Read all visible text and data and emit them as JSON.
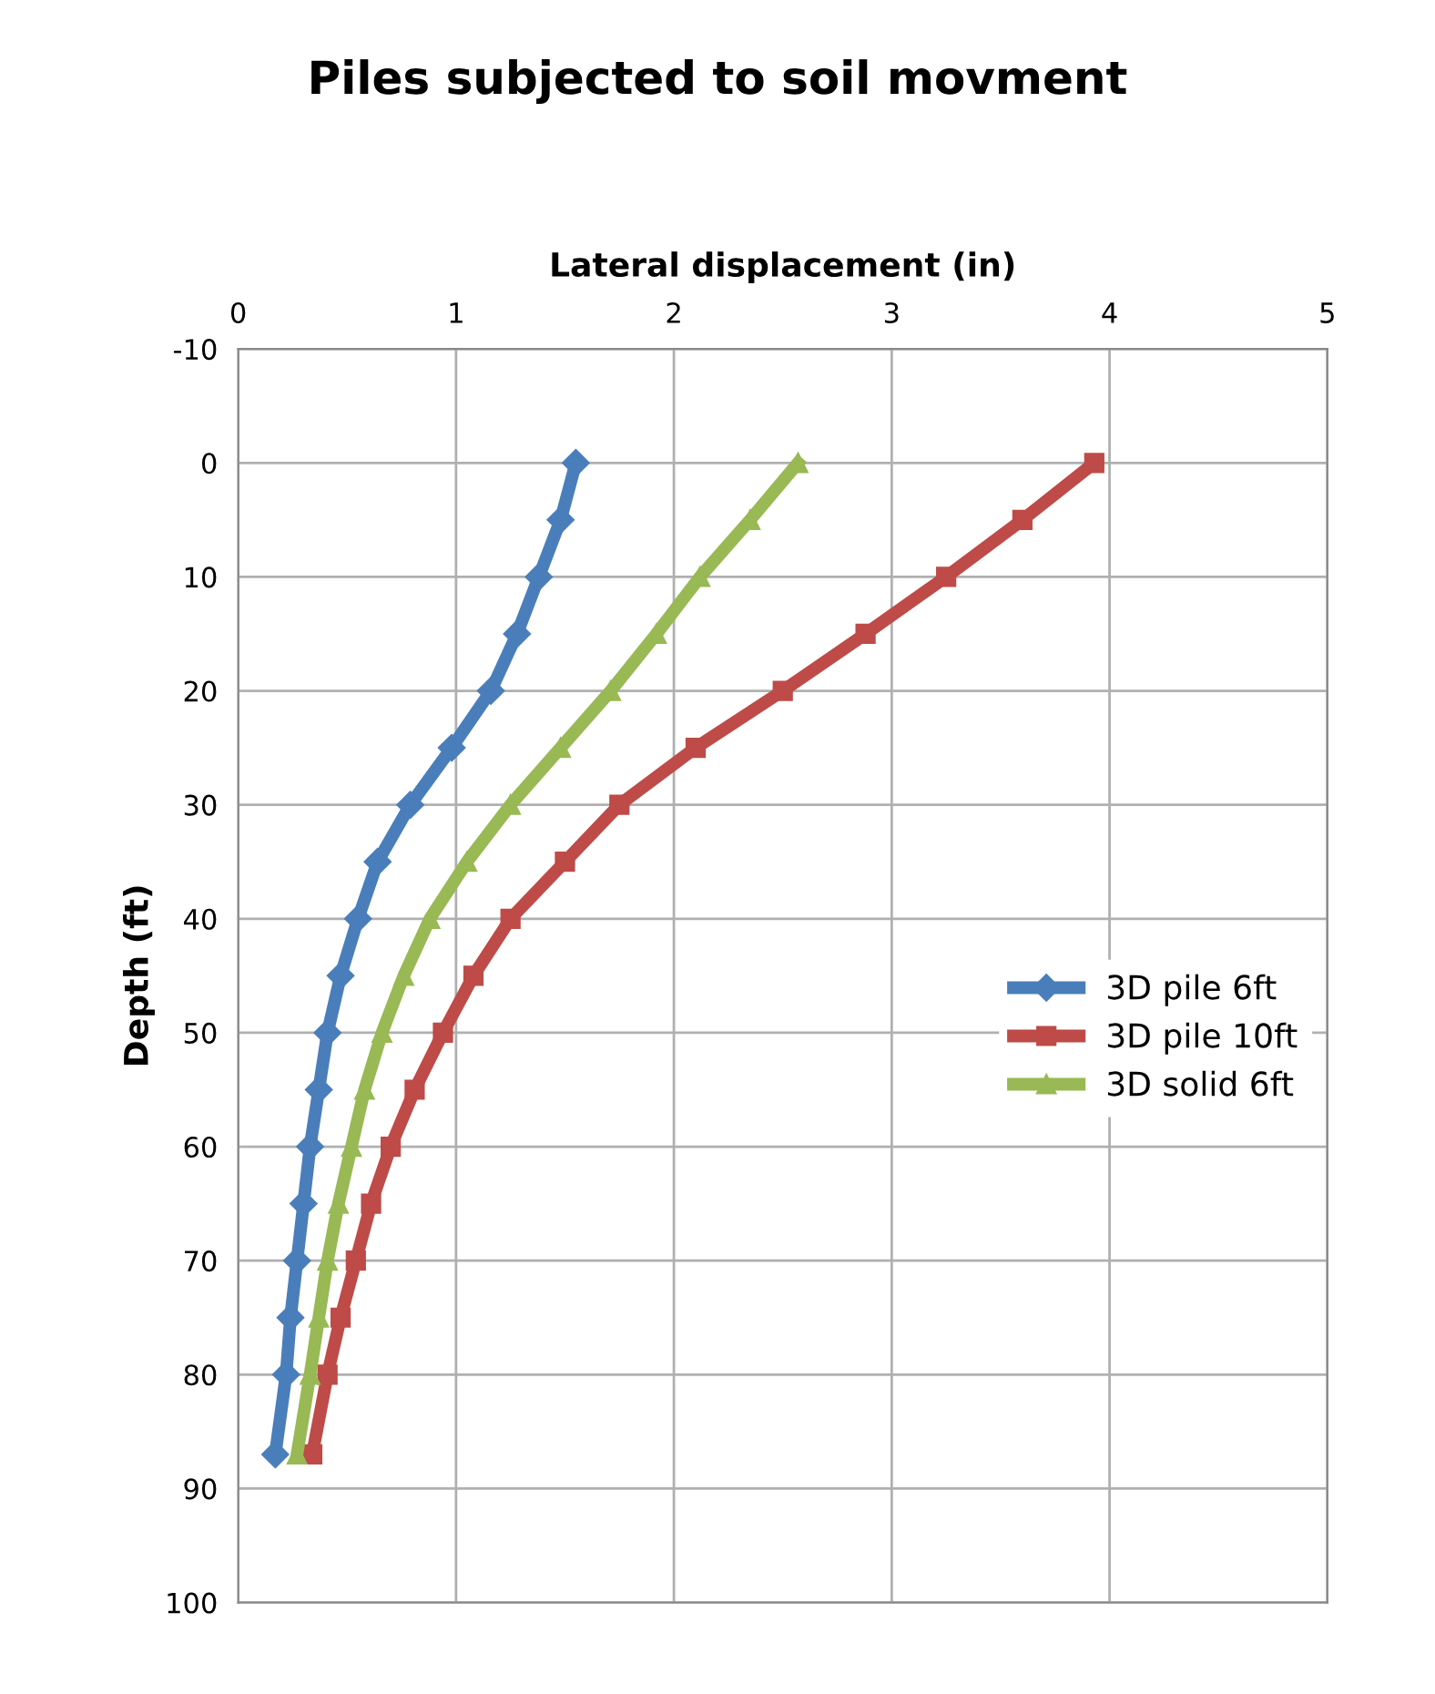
{
  "chart_data": {
    "type": "line",
    "title": "Piles subjected to soil movment",
    "xlabel": "Lateral displacement (in)",
    "ylabel": "Depth (ft)",
    "xlim": [
      0,
      5
    ],
    "xticks": [
      0,
      1,
      2,
      3,
      4,
      5
    ],
    "ylim": [
      100,
      -10
    ],
    "yticks": [
      -10,
      0,
      10,
      20,
      30,
      40,
      50,
      60,
      70,
      80,
      90,
      100
    ],
    "grid": true,
    "legend": "right",
    "series": [
      {
        "name": "3D pile 6ft",
        "color": "#4a7ebb",
        "marker": "diamond",
        "x": [
          1.55,
          1.48,
          1.38,
          1.28,
          1.16,
          0.98,
          0.79,
          0.64,
          0.55,
          0.47,
          0.41,
          0.37,
          0.33,
          0.3,
          0.27,
          0.24,
          0.22,
          0.17
        ],
        "values": [
          0,
          5,
          10,
          15,
          20,
          25,
          30,
          35,
          40,
          45,
          50,
          55,
          60,
          65,
          70,
          75,
          80,
          87
        ]
      },
      {
        "name": "3D pile 10ft",
        "color": "#be4b48",
        "marker": "square",
        "x": [
          3.93,
          3.6,
          3.25,
          2.88,
          2.5,
          2.1,
          1.75,
          1.5,
          1.25,
          1.08,
          0.94,
          0.81,
          0.7,
          0.61,
          0.54,
          0.47,
          0.41,
          0.34
        ],
        "values": [
          0,
          5,
          10,
          15,
          20,
          25,
          30,
          35,
          40,
          45,
          50,
          55,
          60,
          65,
          70,
          75,
          80,
          87
        ]
      },
      {
        "name": "3D solid 6ft",
        "color": "#98b954",
        "marker": "triangle",
        "x": [
          2.57,
          2.35,
          2.12,
          1.92,
          1.71,
          1.48,
          1.25,
          1.05,
          0.88,
          0.76,
          0.66,
          0.58,
          0.52,
          0.46,
          0.41,
          0.37,
          0.33,
          0.27
        ],
        "values": [
          0,
          5,
          10,
          15,
          20,
          25,
          30,
          35,
          40,
          45,
          50,
          55,
          60,
          65,
          70,
          75,
          80,
          87
        ]
      }
    ]
  }
}
